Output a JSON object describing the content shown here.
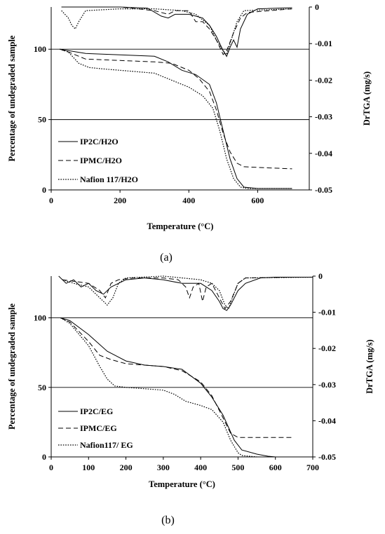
{
  "chart_data": [
    {
      "id": "a",
      "type": "line",
      "caption": "(a)",
      "xlabel": "Temperature (°C)",
      "ylabel": "Percentage of undegraded sample",
      "y2label": "DrTGA (mg/s)",
      "xlim": [
        0,
        750
      ],
      "ylim": [
        0,
        130
      ],
      "y2lim": [
        -0.05,
        0.0
      ],
      "xticks": [
        0,
        200,
        400,
        600
      ],
      "yticks": [
        0,
        50,
        100
      ],
      "y2ticks": [
        0,
        -0.01,
        -0.02,
        -0.03,
        -0.04,
        -0.05
      ],
      "y2tick_labels": [
        "0",
        "-0.01",
        "-0.02",
        "-0.03",
        "-0.04",
        "-0.05"
      ],
      "gridlines_y": [
        50,
        100
      ],
      "legend_position": "bottom-left",
      "series": [
        {
          "name": "IP2C/H2O",
          "axis": "left",
          "dash": "solid",
          "points": [
            [
              25,
              100
            ],
            [
              50,
              99
            ],
            [
              100,
              97
            ],
            [
              200,
              96
            ],
            [
              250,
              95.5
            ],
            [
              300,
              95
            ],
            [
              340,
              91
            ],
            [
              380,
              85
            ],
            [
              420,
              82
            ],
            [
              460,
              75
            ],
            [
              480,
              62
            ],
            [
              500,
              42
            ],
            [
              520,
              22
            ],
            [
              540,
              8
            ],
            [
              560,
              2
            ],
            [
              600,
              1
            ],
            [
              700,
              1
            ]
          ]
        },
        {
          "name": "IPMC/H2O",
          "axis": "left",
          "dash": "dashed",
          "points": [
            [
              25,
              100
            ],
            [
              50,
              98
            ],
            [
              100,
              93
            ],
            [
              200,
              92
            ],
            [
              300,
              91
            ],
            [
              350,
              90
            ],
            [
              400,
              85
            ],
            [
              430,
              79
            ],
            [
              460,
              70
            ],
            [
              480,
              57
            ],
            [
              500,
              40
            ],
            [
              520,
              27
            ],
            [
              540,
              19
            ],
            [
              560,
              16.5
            ],
            [
              600,
              16
            ],
            [
              700,
              15
            ]
          ]
        },
        {
          "name": "Nafion 117/H2O",
          "axis": "left",
          "dash": "dotted",
          "points": [
            [
              25,
              100
            ],
            [
              50,
              98
            ],
            [
              80,
              90
            ],
            [
              110,
              87
            ],
            [
              150,
              86
            ],
            [
              200,
              85
            ],
            [
              300,
              83
            ],
            [
              360,
              77
            ],
            [
              400,
              73
            ],
            [
              440,
              67
            ],
            [
              470,
              58
            ],
            [
              490,
              42
            ],
            [
              510,
              22
            ],
            [
              530,
              8
            ],
            [
              550,
              2
            ],
            [
              570,
              1
            ],
            [
              700,
              1
            ]
          ]
        },
        {
          "name": "",
          "axis": "right",
          "dash": "solid",
          "points": [
            [
              30,
              0.0
            ],
            [
              80,
              0.0
            ],
            [
              200,
              0.0
            ],
            [
              280,
              -0.0003
            ],
            [
              320,
              -0.0025
            ],
            [
              340,
              -0.003
            ],
            [
              360,
              -0.002
            ],
            [
              400,
              -0.002
            ],
            [
              440,
              -0.003
            ],
            [
              460,
              -0.005
            ],
            [
              480,
              -0.008
            ],
            [
              500,
              -0.012
            ],
            [
              510,
              -0.0135
            ],
            [
              520,
              -0.011
            ],
            [
              530,
              -0.009
            ],
            [
              540,
              -0.011
            ],
            [
              550,
              -0.006
            ],
            [
              570,
              -0.002
            ],
            [
              600,
              -0.0005
            ],
            [
              700,
              -0.0002
            ]
          ]
        },
        {
          "name": "",
          "axis": "right",
          "dash": "dashed",
          "points": [
            [
              30,
              0.0
            ],
            [
              200,
              0.0
            ],
            [
              300,
              -0.001
            ],
            [
              340,
              -0.002
            ],
            [
              360,
              -0.001
            ],
            [
              400,
              -0.001
            ],
            [
              420,
              -0.004
            ],
            [
              440,
              -0.004
            ],
            [
              460,
              -0.006
            ],
            [
              480,
              -0.009
            ],
            [
              500,
              -0.013
            ],
            [
              510,
              -0.012
            ],
            [
              530,
              -0.007
            ],
            [
              550,
              -0.003
            ],
            [
              570,
              -0.0015
            ],
            [
              700,
              -0.0005
            ]
          ]
        },
        {
          "name": "",
          "axis": "right",
          "dash": "dotted",
          "points": [
            [
              30,
              -0.001
            ],
            [
              50,
              -0.003
            ],
            [
              60,
              -0.005
            ],
            [
              70,
              -0.006
            ],
            [
              80,
              -0.004
            ],
            [
              100,
              -0.001
            ],
            [
              200,
              -0.0005
            ],
            [
              300,
              -0.0005
            ],
            [
              380,
              -0.001
            ],
            [
              420,
              -0.002
            ],
            [
              460,
              -0.005
            ],
            [
              480,
              -0.009
            ],
            [
              500,
              -0.012
            ],
            [
              510,
              -0.013
            ],
            [
              520,
              -0.01
            ],
            [
              540,
              -0.004
            ],
            [
              560,
              -0.001
            ],
            [
              700,
              -0.0005
            ]
          ]
        }
      ]
    },
    {
      "id": "b",
      "type": "line",
      "caption": "(b)",
      "xlabel": "Temperature (°C)",
      "ylabel": "Percentage of undegraded sample",
      "y2label": "DrTGA (mg/s)",
      "xlim": [
        0,
        700
      ],
      "ylim": [
        0,
        130
      ],
      "y2lim": [
        -0.05,
        0.0
      ],
      "xticks": [
        0,
        100,
        200,
        300,
        400,
        500,
        600,
        700
      ],
      "yticks": [
        0,
        50,
        100
      ],
      "y2ticks": [
        0,
        -0.01,
        -0.02,
        -0.03,
        -0.04,
        -0.05
      ],
      "y2tick_labels": [
        "0",
        "-0.01",
        "-0.02",
        "-0.03",
        "-0.04",
        "-0.05"
      ],
      "gridlines_y": [
        50,
        100
      ],
      "legend_position": "bottom-left",
      "series": [
        {
          "name": "IP2C/EG",
          "axis": "left",
          "dash": "solid",
          "points": [
            [
              25,
              100
            ],
            [
              50,
              98
            ],
            [
              100,
              88
            ],
            [
              150,
              76
            ],
            [
              200,
              69
            ],
            [
              250,
              66
            ],
            [
              300,
              65
            ],
            [
              350,
              63
            ],
            [
              400,
              53
            ],
            [
              430,
              43
            ],
            [
              460,
              30
            ],
            [
              490,
              12
            ],
            [
              510,
              5
            ],
            [
              550,
              2
            ],
            [
              580,
              0.5
            ],
            [
              600,
              0
            ]
          ]
        },
        {
          "name": "IPMC/EG",
          "axis": "left",
          "dash": "dashed",
          "points": [
            [
              25,
              100
            ],
            [
              50,
              97
            ],
            [
              100,
              83
            ],
            [
              130,
              73
            ],
            [
              160,
              70
            ],
            [
              200,
              67
            ],
            [
              300,
              65
            ],
            [
              350,
              62
            ],
            [
              400,
              54
            ],
            [
              430,
              44
            ],
            [
              460,
              28
            ],
            [
              480,
              17
            ],
            [
              500,
              14
            ],
            [
              550,
              14
            ],
            [
              600,
              14
            ],
            [
              650,
              14
            ]
          ]
        },
        {
          "name": "Nafion117/ EG",
          "axis": "left",
          "dash": "dotted",
          "points": [
            [
              25,
              100
            ],
            [
              50,
              96
            ],
            [
              100,
              80
            ],
            [
              130,
              65
            ],
            [
              150,
              56
            ],
            [
              170,
              51
            ],
            [
              200,
              50
            ],
            [
              300,
              48
            ],
            [
              330,
              45
            ],
            [
              360,
              40
            ],
            [
              400,
              37
            ],
            [
              430,
              34
            ],
            [
              460,
              25
            ],
            [
              480,
              12
            ],
            [
              500,
              3
            ],
            [
              510,
              1
            ],
            [
              550,
              0
            ]
          ]
        },
        {
          "name": "",
          "axis": "right",
          "dash": "solid",
          "points": [
            [
              20,
              0.0
            ],
            [
              40,
              -0.002
            ],
            [
              60,
              -0.001
            ],
            [
              80,
              -0.003
            ],
            [
              100,
              -0.002
            ],
            [
              120,
              -0.004
            ],
            [
              140,
              -0.005
            ],
            [
              160,
              -0.003
            ],
            [
              200,
              -0.001
            ],
            [
              250,
              -0.0005
            ],
            [
              300,
              -0.001
            ],
            [
              350,
              -0.002
            ],
            [
              400,
              -0.002
            ],
            [
              430,
              -0.004
            ],
            [
              450,
              -0.007
            ],
            [
              460,
              -0.009
            ],
            [
              470,
              -0.0095
            ],
            [
              480,
              -0.008
            ],
            [
              500,
              -0.004
            ],
            [
              520,
              -0.002
            ],
            [
              560,
              -0.0005
            ],
            [
              600,
              -0.0003
            ],
            [
              700,
              -0.0003
            ]
          ]
        },
        {
          "name": "",
          "axis": "right",
          "dash": "dashed",
          "points": [
            [
              30,
              -0.001
            ],
            [
              100,
              -0.002
            ],
            [
              130,
              -0.004
            ],
            [
              145,
              -0.006
            ],
            [
              160,
              -0.002
            ],
            [
              180,
              -0.001
            ],
            [
              220,
              -0.0005
            ],
            [
              300,
              -0.0005
            ],
            [
              340,
              -0.001
            ],
            [
              360,
              -0.003
            ],
            [
              370,
              -0.006
            ],
            [
              380,
              -0.003
            ],
            [
              395,
              -0.002
            ],
            [
              405,
              -0.007
            ],
            [
              415,
              -0.003
            ],
            [
              430,
              -0.002
            ],
            [
              450,
              -0.006
            ],
            [
              465,
              -0.009
            ],
            [
              480,
              -0.007
            ],
            [
              500,
              -0.002
            ],
            [
              520,
              -0.0005
            ],
            [
              650,
              -0.0003
            ]
          ]
        },
        {
          "name": "",
          "axis": "right",
          "dash": "dotted",
          "points": [
            [
              30,
              -0.001
            ],
            [
              60,
              -0.002
            ],
            [
              100,
              -0.003
            ],
            [
              130,
              -0.006
            ],
            [
              150,
              -0.008
            ],
            [
              165,
              -0.006
            ],
            [
              180,
              -0.002
            ],
            [
              200,
              -0.0005
            ],
            [
              300,
              0.0
            ],
            [
              350,
              -0.0005
            ],
            [
              400,
              -0.001
            ],
            [
              430,
              -0.002
            ],
            [
              450,
              -0.004
            ],
            [
              465,
              -0.008
            ],
            [
              475,
              -0.009
            ],
            [
              485,
              -0.006
            ],
            [
              500,
              -0.002
            ],
            [
              520,
              -0.0005
            ],
            [
              700,
              -0.0003
            ]
          ]
        }
      ]
    }
  ]
}
